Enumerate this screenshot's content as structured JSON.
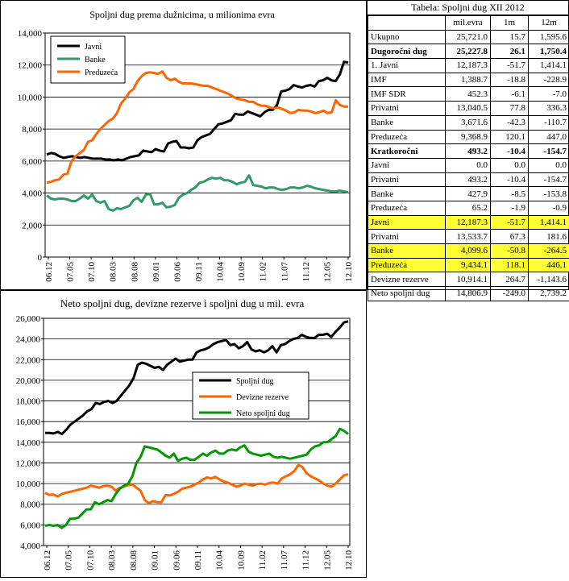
{
  "chart_data": [
    {
      "type": "line",
      "title": "Spoljni dug prema dužnicima, u milionima evra",
      "ylim": [
        0,
        14000
      ],
      "yticks": [
        "0",
        "2,000",
        "4,000",
        "6,000",
        "8,000",
        "10,000",
        "12,000",
        "14,000"
      ],
      "xtick_labels": [
        "06.12",
        "07.05",
        "07.10",
        "08.03",
        "08.08",
        "09.01",
        "09.06",
        "09.11",
        "10.04",
        "10.09",
        "11.02",
        "11.07",
        "11.12",
        "12.05",
        "12.10"
      ],
      "legend_position": "top-left",
      "grid": true,
      "series": [
        {
          "name": "Javni",
          "color": "#000000",
          "values": [
            6400,
            6500,
            6450,
            6300,
            6200,
            6250,
            6300,
            6250,
            6200,
            6250,
            6200,
            6150,
            6150,
            6150,
            6100,
            6100,
            6050,
            6100,
            6050,
            6150,
            6250,
            6300,
            6350,
            6650,
            6600,
            6550,
            6750,
            6650,
            6600,
            7100,
            7200,
            7250,
            6850,
            6850,
            6800,
            6850,
            7300,
            7500,
            7600,
            7700,
            8000,
            8300,
            8350,
            8450,
            8550,
            8950,
            8900,
            8900,
            9100,
            9000,
            8900,
            8800,
            9050,
            9200,
            9200,
            9500,
            10350,
            10400,
            10500,
            10750,
            10650,
            10600,
            10700,
            10750,
            10650,
            11000,
            11050,
            11200,
            11050,
            11000,
            11400,
            12200,
            12150
          ]
        },
        {
          "name": "Banke",
          "color": "#339966",
          "values": [
            3850,
            3650,
            3600,
            3650,
            3650,
            3600,
            3500,
            3500,
            3650,
            3850,
            3650,
            3900,
            3500,
            3400,
            3500,
            3000,
            2900,
            3050,
            3000,
            3100,
            3200,
            3550,
            3700,
            3450,
            3900,
            3950,
            3300,
            3300,
            3400,
            3100,
            3150,
            3250,
            3700,
            3900,
            4000,
            4200,
            4350,
            4650,
            4700,
            4850,
            4950,
            4900,
            4950,
            4800,
            4800,
            4700,
            4550,
            4650,
            4700,
            5100,
            4500,
            4450,
            4400,
            4300,
            4350,
            4350,
            4250,
            4200,
            4250,
            4350,
            4350,
            4300,
            4350,
            4450,
            4400,
            4300,
            4250,
            4200,
            4150,
            4100,
            4100,
            4150,
            4100,
            4050
          ]
        },
        {
          "name": "Preduzeća",
          "color": "#ff6600",
          "values": [
            4650,
            4700,
            4800,
            4850,
            5150,
            5200,
            6000,
            6300,
            6500,
            6700,
            7200,
            7300,
            7700,
            8000,
            8250,
            8500,
            8650,
            9000,
            9600,
            9900,
            10300,
            10500,
            11000,
            11300,
            11500,
            11550,
            11500,
            11450,
            11600,
            11200,
            11050,
            11150,
            10950,
            10850,
            10850,
            10850,
            10800,
            10750,
            10700,
            10700,
            10600,
            10500,
            10400,
            10300,
            10200,
            10050,
            9900,
            9850,
            9800,
            9700,
            9700,
            9550,
            9450,
            9450,
            9350,
            9300,
            9350,
            9250,
            9150,
            9000,
            9050,
            9200,
            9150,
            9150,
            9100,
            9000,
            9050,
            9150,
            9000,
            9050,
            9800,
            9500,
            9400,
            9400
          ]
        }
      ]
    },
    {
      "type": "line",
      "title": "Neto spoljni dug, devizne rezerve  i spoljni dug u mil.  evra",
      "ylim": [
        4000,
        26000
      ],
      "yticks": [
        "4,000",
        "6,000",
        "8,000",
        "10,000",
        "12,000",
        "14,000",
        "16,000",
        "18,000",
        "20,000",
        "22,000",
        "24,000",
        "26,000"
      ],
      "xtick_labels": [
        "06.12",
        "07.05",
        "07.10",
        "08.03",
        "08.08",
        "09.01",
        "09.06",
        "09.11",
        "10.04",
        "10.09",
        "11.02",
        "11.07",
        "11.12",
        "12.05",
        "12.10"
      ],
      "legend_position": "center-right",
      "grid": true,
      "series": [
        {
          "name": "Spoljni dug",
          "color": "#000000",
          "values": [
            14900,
            14900,
            14850,
            15000,
            14800,
            15200,
            15700,
            16000,
            16300,
            16600,
            17000,
            17200,
            17800,
            17700,
            17900,
            18000,
            17800,
            18000,
            18500,
            19000,
            19500,
            20200,
            21500,
            21700,
            21600,
            21400,
            21200,
            21300,
            21000,
            21500,
            21800,
            22100,
            21800,
            21900,
            22000,
            22000,
            22700,
            22900,
            23000,
            23200,
            23500,
            23700,
            23800,
            23900,
            23400,
            23500,
            23100,
            23300,
            23700,
            23000,
            22800,
            22900,
            22700,
            22900,
            23300,
            22700,
            23400,
            23500,
            23800,
            24000,
            24100,
            24400,
            24200,
            24100,
            24100,
            24400,
            24400,
            24500,
            24200,
            24700,
            25100,
            25600,
            25700
          ]
        },
        {
          "name": "Devizne rezerve",
          "color": "#ff6600",
          "values": [
            9100,
            8900,
            8950,
            8750,
            9000,
            9100,
            9200,
            9300,
            9400,
            9500,
            9600,
            9800,
            9700,
            9600,
            9750,
            9800,
            9700,
            9300,
            9600,
            9700,
            9850,
            9900,
            9600,
            9300,
            8400,
            8100,
            8300,
            8200,
            8200,
            8900,
            8850,
            9000,
            9200,
            9500,
            9600,
            9700,
            9900,
            10100,
            10400,
            10600,
            10500,
            10650,
            10400,
            10200,
            10100,
            9900,
            9700,
            9800,
            10000,
            9900,
            9800,
            9950,
            10000,
            9900,
            10050,
            10100,
            10000,
            10500,
            10700,
            10900,
            11200,
            11800,
            11600,
            11000,
            10700,
            10500,
            10300,
            10000,
            9800,
            9700,
            10000,
            10400,
            10800,
            10900
          ]
        },
        {
          "name": "Neto spoljni dug",
          "color": "#009900",
          "values": [
            5900,
            6000,
            5900,
            6000,
            5700,
            6000,
            6600,
            6600,
            6700,
            7100,
            7500,
            7500,
            8200,
            8000,
            8200,
            8400,
            8300,
            9000,
            9500,
            9800,
            10000,
            10700,
            12000,
            12600,
            13600,
            13500,
            13400,
            13300,
            13000,
            12700,
            12500,
            12900,
            12200,
            12400,
            12500,
            12300,
            12300,
            12600,
            12900,
            12700,
            13000,
            13200,
            12900,
            12900,
            13200,
            13300,
            13200,
            13500,
            13700,
            13100,
            12900,
            12800,
            12700,
            12800,
            12900,
            12600,
            12500,
            12600,
            12500,
            12400,
            12500,
            12600,
            12700,
            12800,
            13300,
            13600,
            13700,
            14000,
            14000,
            14300,
            14600,
            15300,
            15100,
            14800
          ]
        }
      ]
    },
    {
      "type": "table",
      "title": "Tabela: Spoljni dug XII 2012",
      "columns": [
        "",
        "mil.evra",
        "1m",
        "12m"
      ],
      "rows": [
        {
          "label": "Ukupno",
          "v": [
            "25,721.0",
            "15.7",
            "1,595.6"
          ],
          "bold": false,
          "hl": false
        },
        {
          "label": "Dugoročni dug",
          "v": [
            "25,227.8",
            "26.1",
            "1,750.4"
          ],
          "bold": true,
          "hl": false
        },
        {
          "label": "1. Javni",
          "v": [
            "12,187.3",
            "-51.7",
            "1,414.1"
          ],
          "bold": false,
          "hl": false
        },
        {
          "label": "IMF",
          "v": [
            "1,388.7",
            "-18.8",
            "-228.9"
          ],
          "bold": false,
          "hl": false
        },
        {
          "label": "IMF SDR",
          "v": [
            "452.3",
            "-6.1",
            "-7.0"
          ],
          "bold": false,
          "hl": false
        },
        {
          "label": "Privatni",
          "v": [
            "13,040.5",
            "77.8",
            "336.3"
          ],
          "bold": false,
          "hl": false
        },
        {
          "label": "Banke",
          "v": [
            "3,671.6",
            "-42.3",
            "-110.7"
          ],
          "bold": false,
          "hl": false
        },
        {
          "label": "Preduzeća",
          "v": [
            "9,368.9",
            "120.1",
            "447.0"
          ],
          "bold": false,
          "hl": false
        },
        {
          "label": "Kratkoročni",
          "v": [
            "493.2",
            "-10.4",
            "-154.7"
          ],
          "bold": true,
          "hl": false
        },
        {
          "label": "Javni",
          "v": [
            "0.0",
            "0.0",
            "0.0"
          ],
          "bold": false,
          "hl": false
        },
        {
          "label": "Privatni",
          "v": [
            "493.2",
            "-10.4",
            "-154.7"
          ],
          "bold": false,
          "hl": false
        },
        {
          "label": "Banke",
          "v": [
            "427.9",
            "-8.5",
            "-153.8"
          ],
          "bold": false,
          "hl": false
        },
        {
          "label": "Preduzeća",
          "v": [
            "65.2",
            "-1.9",
            "-0.9"
          ],
          "bold": false,
          "hl": false
        },
        {
          "label": "Javni",
          "v": [
            "12,187.3",
            "-51.7",
            "1,414.1"
          ],
          "bold": false,
          "hl": true
        },
        {
          "label": "Privatni",
          "v": [
            "13,533.7",
            "67.3",
            "181.6"
          ],
          "bold": false,
          "hl": false
        },
        {
          "label": "Banke",
          "v": [
            "4,099.6",
            "-50.8",
            "-264.5"
          ],
          "bold": false,
          "hl": true
        },
        {
          "label": "Preduzeća",
          "v": [
            "9,434.1",
            "118.1",
            "446.1"
          ],
          "bold": false,
          "hl": true
        },
        {
          "label": "Devizne rezerve",
          "v": [
            "10,914.1",
            "264.7",
            "-1,143.6"
          ],
          "bold": false,
          "hl": false
        },
        {
          "label": "Neto spoljni dug",
          "v": [
            "14,806.9",
            "-249.0",
            "2,739.2"
          ],
          "bold": false,
          "hl": false
        }
      ]
    }
  ]
}
